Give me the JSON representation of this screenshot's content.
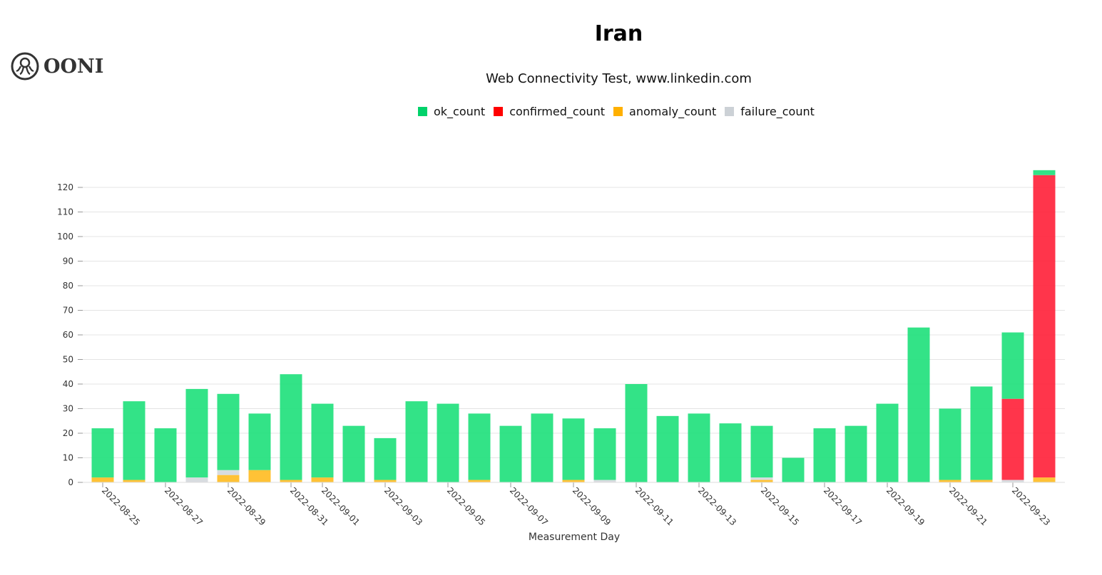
{
  "logo": {
    "text": "OONI"
  },
  "chart_data": {
    "type": "bar",
    "stacked": true,
    "title": "Iran",
    "subtitle": "Web Connectivity Test, www.linkedin.com",
    "xlabel": "Measurement Day",
    "ylabel": "",
    "ylim": [
      0,
      127
    ],
    "yticks": [
      0,
      10,
      20,
      30,
      40,
      50,
      60,
      70,
      80,
      90,
      100,
      110,
      120
    ],
    "grid": true,
    "legend": "top",
    "categories": [
      "2022-08-25",
      "2022-08-26",
      "2022-08-27",
      "2022-08-28",
      "2022-08-29",
      "2022-08-30",
      "2022-08-31",
      "2022-09-01",
      "2022-09-02",
      "2022-09-03",
      "2022-09-04",
      "2022-09-05",
      "2022-09-06",
      "2022-09-07",
      "2022-09-08",
      "2022-09-09",
      "2022-09-10",
      "2022-09-11",
      "2022-09-12",
      "2022-09-13",
      "2022-09-14",
      "2022-09-15",
      "2022-09-16",
      "2022-09-17",
      "2022-09-18",
      "2022-09-19",
      "2022-09-20",
      "2022-09-21",
      "2022-09-22",
      "2022-09-23",
      "2022-09-24"
    ],
    "xticklabels": [
      "2022-08-25",
      "2022-08-27",
      "2022-08-29",
      "2022-08-31",
      "2022-09-01",
      "2022-09-03",
      "2022-09-05",
      "2022-09-07",
      "2022-09-09",
      "2022-09-11",
      "2022-09-13",
      "2022-09-15",
      "2022-09-17",
      "2022-09-19",
      "2022-09-21",
      "2022-09-23"
    ],
    "series": [
      {
        "name": "anomaly_count",
        "color": "#ffbb20",
        "values": [
          2,
          1,
          0,
          0,
          3,
          5,
          1,
          2,
          0,
          1,
          0,
          0,
          1,
          0,
          0,
          1,
          0,
          0,
          0,
          0,
          0,
          1,
          0,
          0,
          0,
          0,
          0,
          1,
          1,
          0,
          2
        ]
      },
      {
        "name": "failure_count",
        "color": "#d4d8dd",
        "values": [
          0,
          0,
          0,
          2,
          2,
          0,
          0,
          0,
          0,
          0,
          0,
          0,
          0,
          0,
          0,
          0,
          1,
          0,
          0,
          0,
          0,
          1,
          0,
          0,
          0,
          0,
          0,
          0,
          0,
          1,
          0
        ]
      },
      {
        "name": "confirmed_count",
        "color": "#ff1f37",
        "values": [
          0,
          0,
          0,
          0,
          0,
          0,
          0,
          0,
          0,
          0,
          0,
          0,
          0,
          0,
          0,
          0,
          0,
          0,
          0,
          0,
          0,
          0,
          0,
          0,
          0,
          0,
          0,
          0,
          0,
          33,
          123
        ]
      },
      {
        "name": "ok_count",
        "color": "#1de07a",
        "values": [
          20,
          32,
          22,
          36,
          31,
          23,
          43,
          30,
          23,
          17,
          33,
          32,
          27,
          23,
          28,
          25,
          21,
          40,
          27,
          28,
          24,
          21,
          10,
          22,
          23,
          32,
          63,
          29,
          38,
          27,
          2
        ]
      }
    ],
    "legend_order": [
      "ok_count",
      "confirmed_count",
      "anomaly_count",
      "failure_count"
    ]
  }
}
